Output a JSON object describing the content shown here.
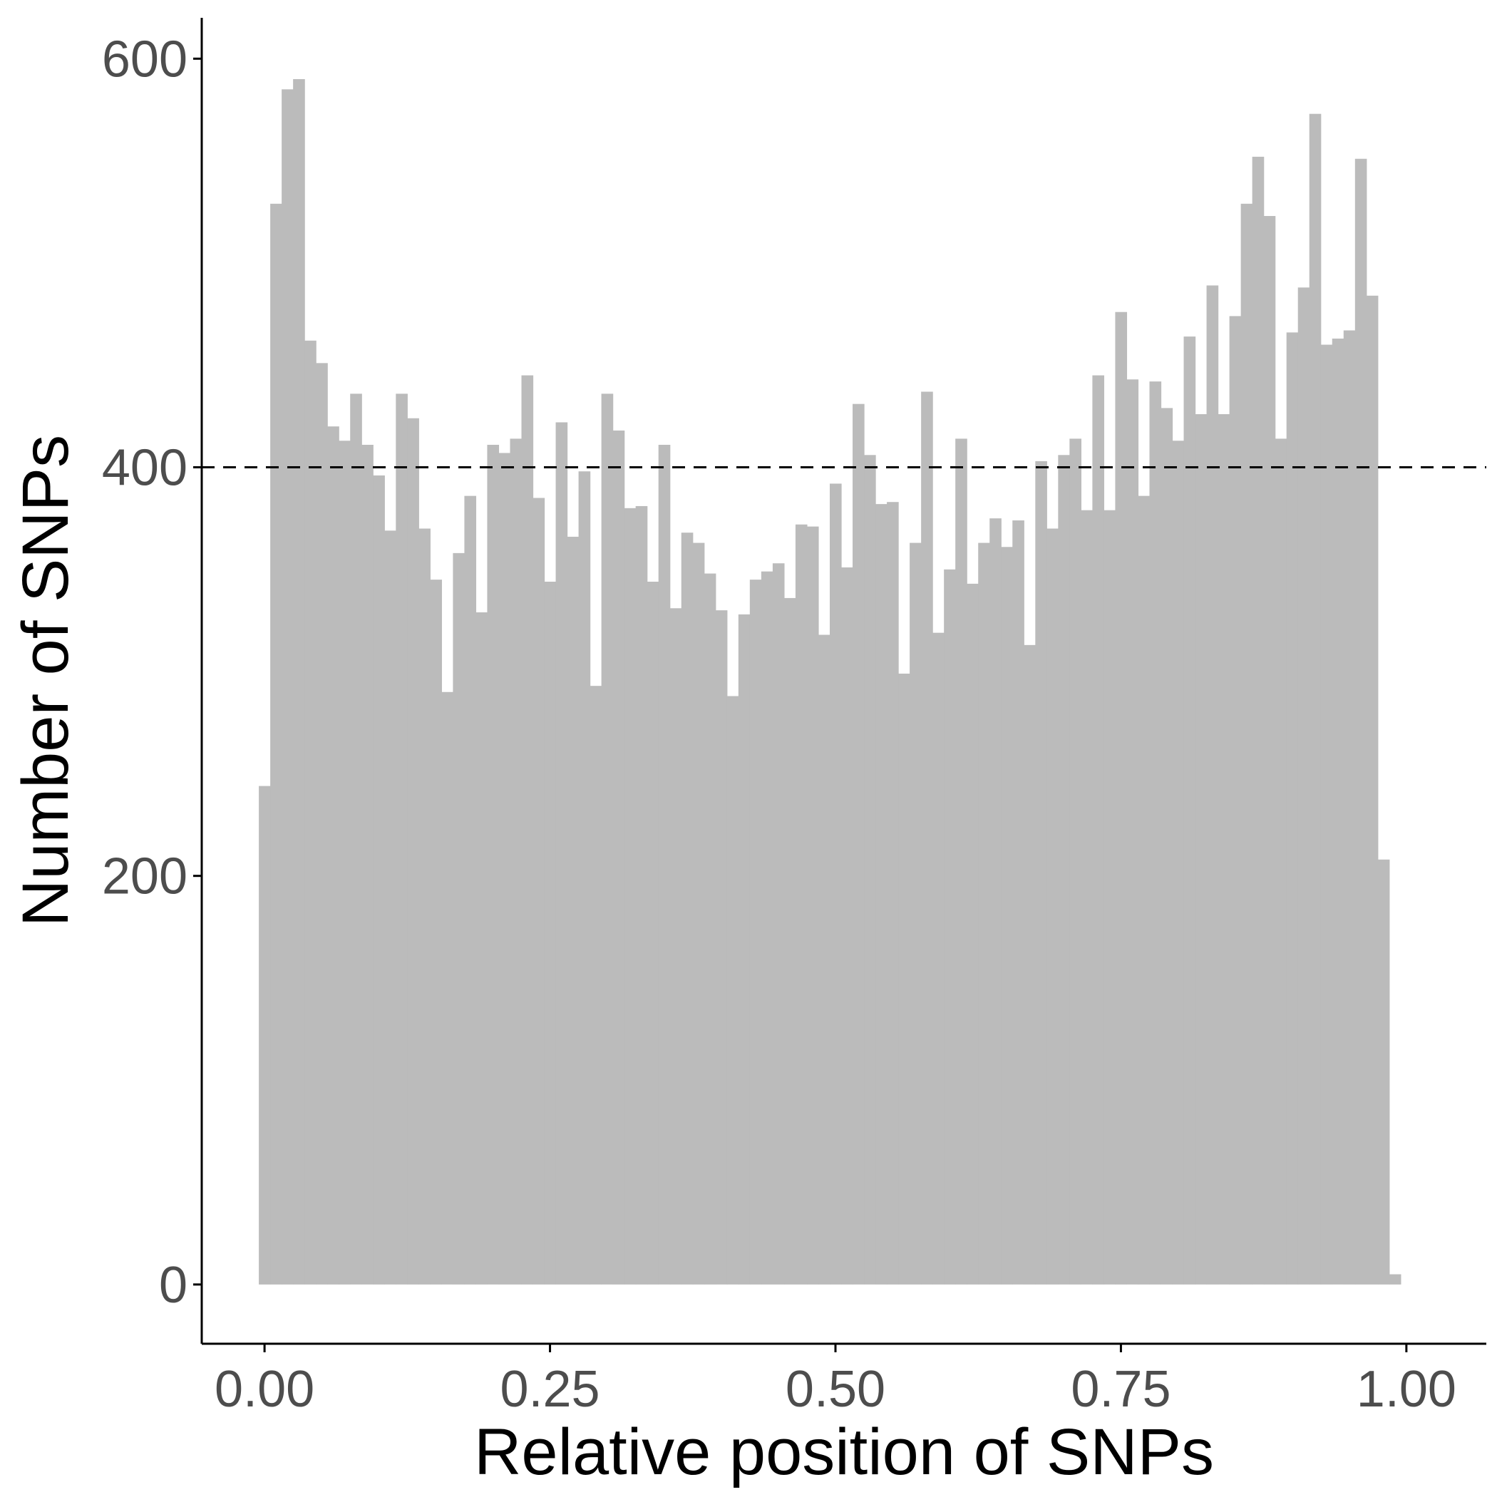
{
  "chart_data": {
    "type": "bar",
    "chart_kind": "histogram",
    "xlabel": "Relative position of SNPs",
    "ylabel": "Number of SNPs",
    "xlim": [
      -0.055,
      1.07
    ],
    "ylim": [
      -29,
      620
    ],
    "x_ticks": [
      {
        "value": 0,
        "label": "0.00"
      },
      {
        "value": 0.25,
        "label": "0.25"
      },
      {
        "value": 0.5,
        "label": "0.50"
      },
      {
        "value": 0.75,
        "label": "0.75"
      },
      {
        "value": 1.0,
        "label": "1.00"
      }
    ],
    "y_ticks": [
      {
        "value": 0,
        "label": "0"
      },
      {
        "value": 200,
        "label": "200"
      },
      {
        "value": 400,
        "label": "400"
      },
      {
        "value": 600,
        "label": "600"
      }
    ],
    "bin_width": 0.01,
    "bin_start": -0.005,
    "values": [
      244,
      529,
      585,
      590,
      462,
      451,
      420,
      413,
      436,
      411,
      396,
      369,
      436,
      424,
      370,
      345,
      290,
      358,
      386,
      329,
      411,
      407,
      414,
      445,
      385,
      344,
      422,
      366,
      398,
      293,
      436,
      418,
      380,
      381,
      344,
      411,
      331,
      368,
      363,
      348,
      330,
      288,
      328,
      345,
      349,
      353,
      336,
      372,
      371,
      318,
      392,
      351,
      431,
      406,
      382,
      383,
      299,
      363,
      437,
      319,
      350,
      414,
      343,
      363,
      375,
      361,
      374,
      313,
      403,
      370,
      406,
      414,
      379,
      445,
      379,
      476,
      443,
      386,
      442,
      429,
      413,
      464,
      426,
      489,
      426,
      474,
      529,
      552,
      523,
      414,
      466,
      488,
      573,
      460,
      463,
      467,
      551,
      484,
      208,
      5
    ],
    "reference_line": {
      "y": 400,
      "style": "dashed",
      "color": "#000000"
    },
    "bar_color": "#bbbbbb",
    "grid": false,
    "legend": "none"
  }
}
